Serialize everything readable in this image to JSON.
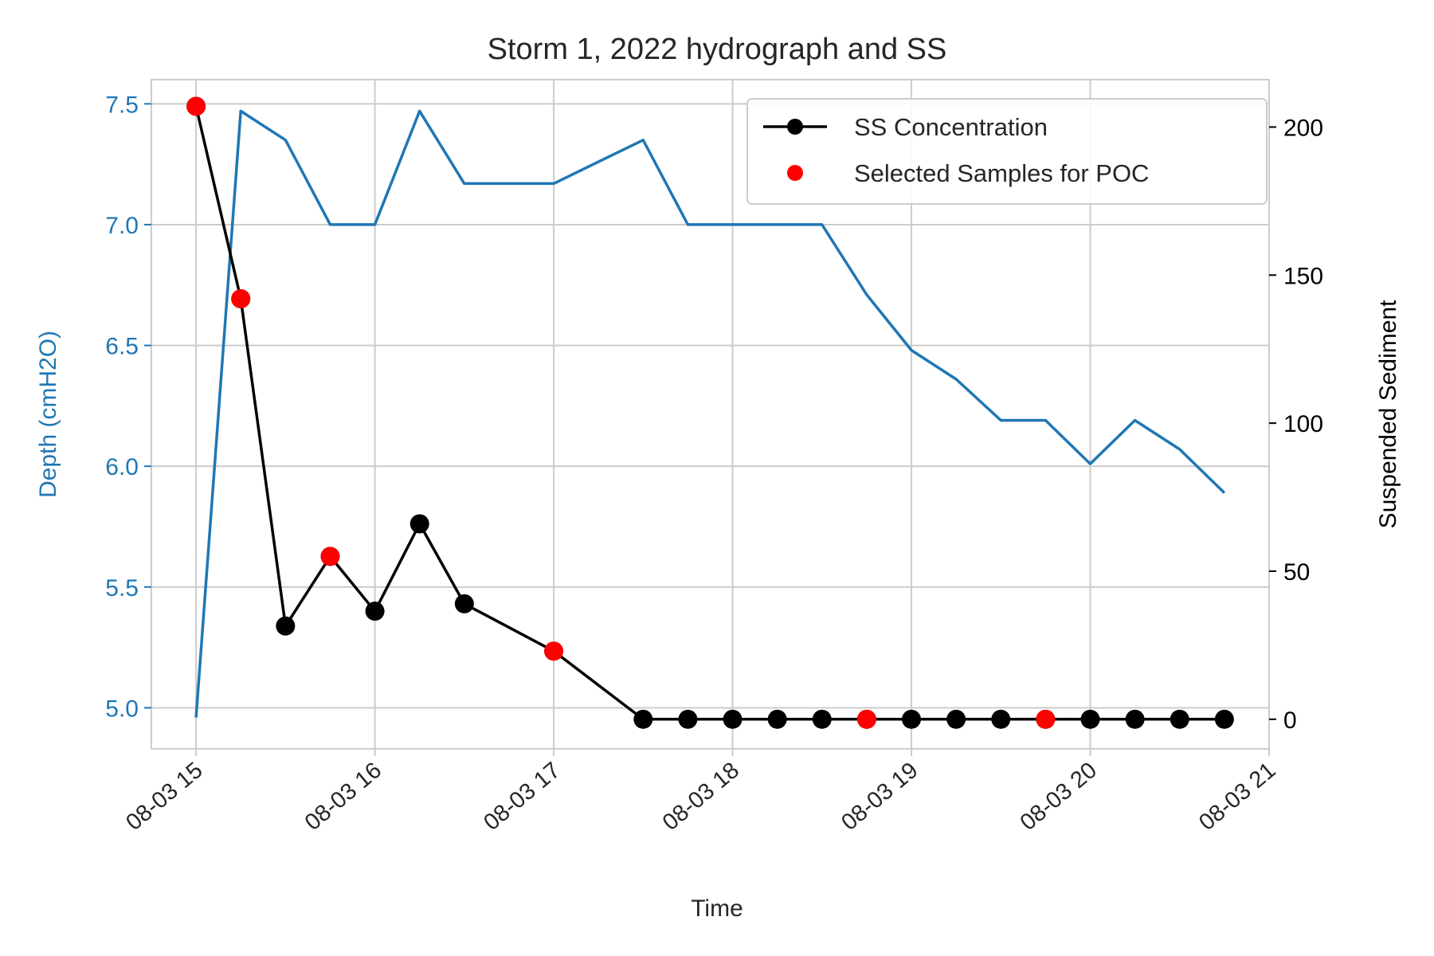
{
  "chart_data": {
    "type": "line",
    "title": "Storm 1, 2022 hydrograph and SS",
    "xlabel": "Time",
    "ylabel_left": "Depth (cmH2O)",
    "ylabel_right": "Suspended Sediment",
    "grid": true,
    "legend_position": "top-right",
    "x_ticks": [
      "08-03 15",
      "08-03 16",
      "08-03 17",
      "08-03 18",
      "08-03 19",
      "08-03 20",
      "08-03 21"
    ],
    "x_range": [
      "2022-08-03 14:45",
      "2022-08-03 21:00"
    ],
    "y_left_ticks": [
      5.0,
      5.5,
      6.0,
      6.5,
      7.0,
      7.5
    ],
    "y_left_range": [
      4.83,
      7.6
    ],
    "y_right_ticks": [
      0,
      50,
      100,
      150,
      200
    ],
    "y_right_range": [
      -10,
      216
    ],
    "colors": {
      "depth": "#1f77b4",
      "ss": "#000000",
      "selected": "#ff0000",
      "grid": "#cccccc",
      "axes": "#cccccc"
    },
    "series": [
      {
        "axis": "left",
        "color": "#1f77b4",
        "x": [
          "2022-08-03 15:00",
          "2022-08-03 15:15",
          "2022-08-03 15:30",
          "2022-08-03 15:45",
          "2022-08-03 16:00",
          "2022-08-03 16:15",
          "2022-08-03 16:30",
          "2022-08-03 16:45",
          "2022-08-03 17:00",
          "2022-08-03 17:15",
          "2022-08-03 17:30",
          "2022-08-03 17:45",
          "2022-08-03 18:00",
          "2022-08-03 18:15",
          "2022-08-03 18:30",
          "2022-08-03 18:45",
          "2022-08-03 19:00",
          "2022-08-03 19:15",
          "2022-08-03 19:30",
          "2022-08-03 19:45",
          "2022-08-03 20:00",
          "2022-08-03 20:15",
          "2022-08-03 20:30",
          "2022-08-03 20:45"
        ],
        "values": [
          4.96,
          7.47,
          7.35,
          7.0,
          7.0,
          7.47,
          7.17,
          7.17,
          7.17,
          7.26,
          7.35,
          7.0,
          7.0,
          7.0,
          7.0,
          6.71,
          6.48,
          6.36,
          6.19,
          6.19,
          6.01,
          6.19,
          6.07,
          5.89
        ]
      },
      {
        "name": "SS Concentration",
        "axis": "right",
        "color": "#000000",
        "x": [
          "2022-08-03 15:00",
          "2022-08-03 15:15",
          "2022-08-03 15:30",
          "2022-08-03 15:45",
          "2022-08-03 16:00",
          "2022-08-03 16:15",
          "2022-08-03 16:30",
          "2022-08-03 17:00",
          "2022-08-03 17:30",
          "2022-08-03 17:45",
          "2022-08-03 18:00",
          "2022-08-03 18:15",
          "2022-08-03 18:30",
          "2022-08-03 18:45",
          "2022-08-03 19:00",
          "2022-08-03 19:15",
          "2022-08-03 19:30",
          "2022-08-03 19:45",
          "2022-08-03 20:00",
          "2022-08-03 20:15",
          "2022-08-03 20:30",
          "2022-08-03 20:45"
        ],
        "values": [
          207,
          142,
          31.5,
          55,
          36.5,
          66,
          39,
          23,
          0,
          0,
          0,
          0,
          0,
          0,
          0,
          0,
          0,
          0,
          0,
          0,
          0,
          0
        ]
      },
      {
        "name": "Selected Samples for POC",
        "axis": "right",
        "color": "#ff0000",
        "x": [
          "2022-08-03 15:00",
          "2022-08-03 15:15",
          "2022-08-03 15:45",
          "2022-08-03 17:00",
          "2022-08-03 18:45",
          "2022-08-03 19:45"
        ],
        "values": [
          207,
          142,
          55,
          23,
          0,
          0
        ]
      }
    ]
  }
}
